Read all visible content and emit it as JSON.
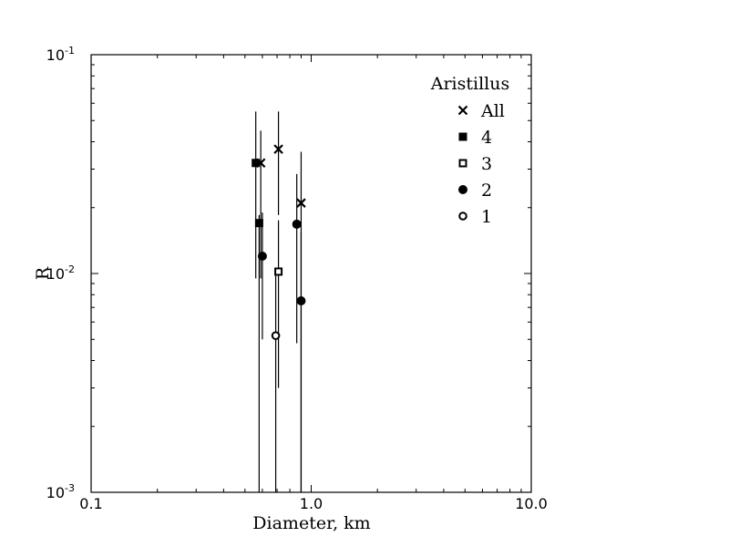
{
  "chart_data": {
    "type": "scatter",
    "title": "",
    "xlabel": "Diameter, km",
    "ylabel": "R",
    "xscale": "log",
    "yscale": "log",
    "xlim": [
      0.1,
      10.0
    ],
    "ylim": [
      0.001,
      0.1
    ],
    "x_ticks": [
      {
        "value": 0.1,
        "label": "0.1"
      },
      {
        "value": 1.0,
        "label": "1.0"
      },
      {
        "value": 10.0,
        "label": "10.0"
      }
    ],
    "y_ticks": [
      {
        "value": 0.001,
        "base": "10",
        "exp": "-3"
      },
      {
        "value": 0.01,
        "base": "10",
        "exp": "-2"
      },
      {
        "value": 0.1,
        "base": "10",
        "exp": "-1"
      }
    ],
    "grid": false,
    "legend": {
      "title": "Aristillus",
      "position": "top-right",
      "entries": [
        {
          "label": "All",
          "marker": "x"
        },
        {
          "label": "4",
          "marker": "square-filled"
        },
        {
          "label": "3",
          "marker": "square-open"
        },
        {
          "label": "2",
          "marker": "circle-filled"
        },
        {
          "label": "1",
          "marker": "circle-open"
        }
      ]
    },
    "series": [
      {
        "name": "All",
        "marker": "x",
        "points": [
          {
            "x": 0.59,
            "y": 0.032,
            "ylo": 0.0095,
            "yhi": 0.045
          },
          {
            "x": 0.71,
            "y": 0.037,
            "ylo": 0.0185,
            "yhi": 0.055
          },
          {
            "x": 0.9,
            "y": 0.021,
            "ylo": 0.001,
            "yhi": 0.036
          }
        ]
      },
      {
        "name": "4",
        "marker": "square-filled",
        "points": [
          {
            "x": 0.56,
            "y": 0.032,
            "ylo": 0.0095,
            "yhi": 0.055
          },
          {
            "x": 0.58,
            "y": 0.017,
            "ylo": 0.001,
            "yhi": 0.0185
          }
        ]
      },
      {
        "name": "3",
        "marker": "square-open",
        "points": [
          {
            "x": 0.71,
            "y": 0.0102,
            "ylo": 0.003,
            "yhi": 0.0175
          }
        ]
      },
      {
        "name": "2",
        "marker": "circle-filled",
        "points": [
          {
            "x": 0.6,
            "y": 0.012,
            "ylo": 0.005,
            "yhi": 0.019
          },
          {
            "x": 0.86,
            "y": 0.0168,
            "ylo": 0.0048,
            "yhi": 0.0285
          },
          {
            "x": 0.9,
            "y": 0.0075,
            "ylo": 0.001,
            "yhi": 0.0155
          }
        ]
      },
      {
        "name": "1",
        "marker": "circle-open",
        "points": [
          {
            "x": 0.69,
            "y": 0.0052,
            "ylo": 0.001,
            "yhi": 0.0098
          }
        ]
      }
    ]
  }
}
